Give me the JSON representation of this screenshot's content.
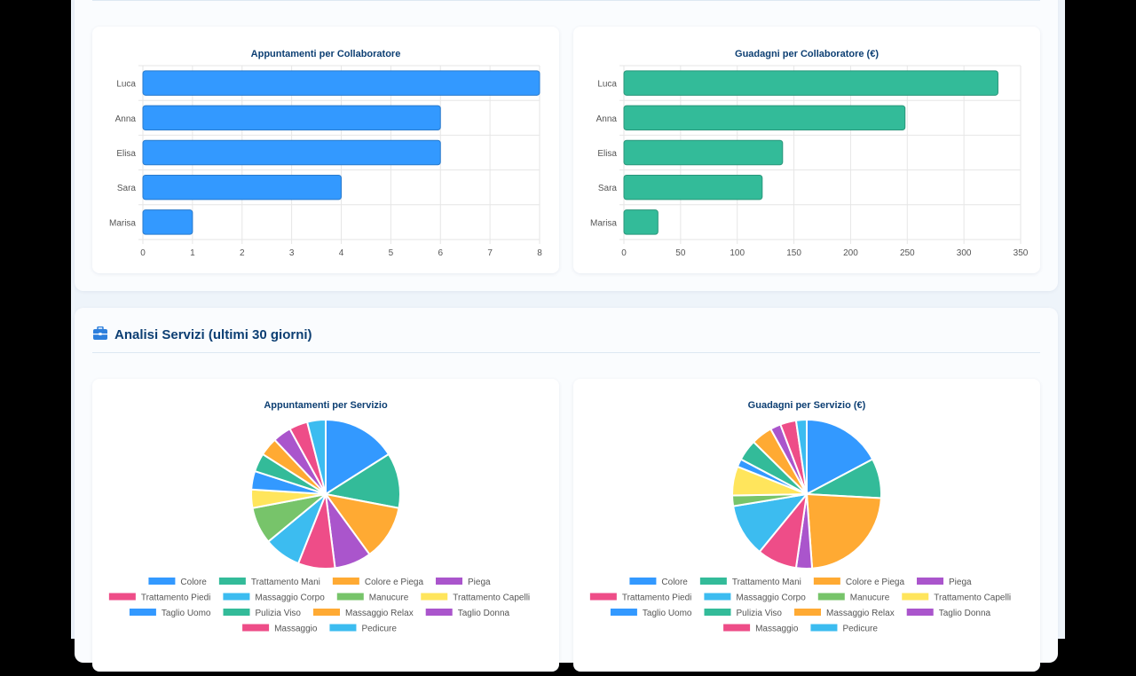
{
  "section2": {
    "title": "Analisi Servizi (ultimi 30 giorni)",
    "icon": "briefcase-icon"
  },
  "colors": {
    "blue": "#3399ff",
    "teal": "#33bb99",
    "title": "#0d3f73"
  },
  "chart_data": [
    {
      "type": "bar",
      "orientation": "horizontal",
      "title": "Appuntamenti per Collaboratore",
      "categories": [
        "Luca",
        "Anna",
        "Elisa",
        "Sara",
        "Marisa"
      ],
      "values": [
        8,
        6,
        6,
        4,
        1
      ],
      "xlim": [
        0,
        8
      ],
      "ticks": [
        "0",
        "1",
        "2",
        "3",
        "4",
        "5",
        "6",
        "7",
        "8"
      ],
      "grid": true,
      "color": "#3399ff"
    },
    {
      "type": "bar",
      "orientation": "horizontal",
      "title": "Guadagni per Collaboratore (€)",
      "categories": [
        "Luca",
        "Anna",
        "Elisa",
        "Sara",
        "Marisa"
      ],
      "values": [
        330,
        248,
        140,
        122,
        30
      ],
      "xlim": [
        0,
        350
      ],
      "ticks": [
        "0",
        "50",
        "100",
        "150",
        "200",
        "250",
        "300",
        "350"
      ],
      "grid": true,
      "color": "#33bb99"
    },
    {
      "type": "pie",
      "title": "Appuntamenti per Servizio",
      "categories": [
        "Colore",
        "Trattamento Mani",
        "Colore e Piega",
        "Piega",
        "Trattamento Piedi",
        "Massaggio Corpo",
        "Manucure",
        "Trattamento Capelli",
        "Taglio Uomo",
        "Pulizia Viso",
        "Massaggio Relax",
        "Taglio Donna",
        "Massaggio",
        "Pedicure"
      ],
      "values": [
        4,
        3,
        3,
        2,
        2,
        2,
        2,
        1,
        1,
        1,
        1,
        1,
        1,
        1
      ],
      "legend": "bottom"
    },
    {
      "type": "pie",
      "title": "Guadagni per Servizio (€)",
      "categories": [
        "Colore",
        "Trattamento Mani",
        "Colore e Piega",
        "Piega",
        "Trattamento Piedi",
        "Massaggio Corpo",
        "Manucure",
        "Trattamento Capelli",
        "Taglio Uomo",
        "Pulizia Viso",
        "Massaggio Relax",
        "Taglio Donna",
        "Massaggio",
        "Pedicure"
      ],
      "values": [
        150,
        75,
        200,
        30,
        75,
        100,
        20,
        55,
        15,
        40,
        40,
        20,
        30,
        20
      ],
      "legend": "bottom"
    }
  ],
  "pie_colors": [
    "#3399ff",
    "#33bb99",
    "#ffaa33",
    "#aa55cc",
    "#ee4d88",
    "#3cbcf0",
    "#77c46a",
    "#ffe55c",
    "#3399ff",
    "#33bb99",
    "#ffaa33",
    "#aa55cc",
    "#ee4d88",
    "#3cbcf0"
  ]
}
